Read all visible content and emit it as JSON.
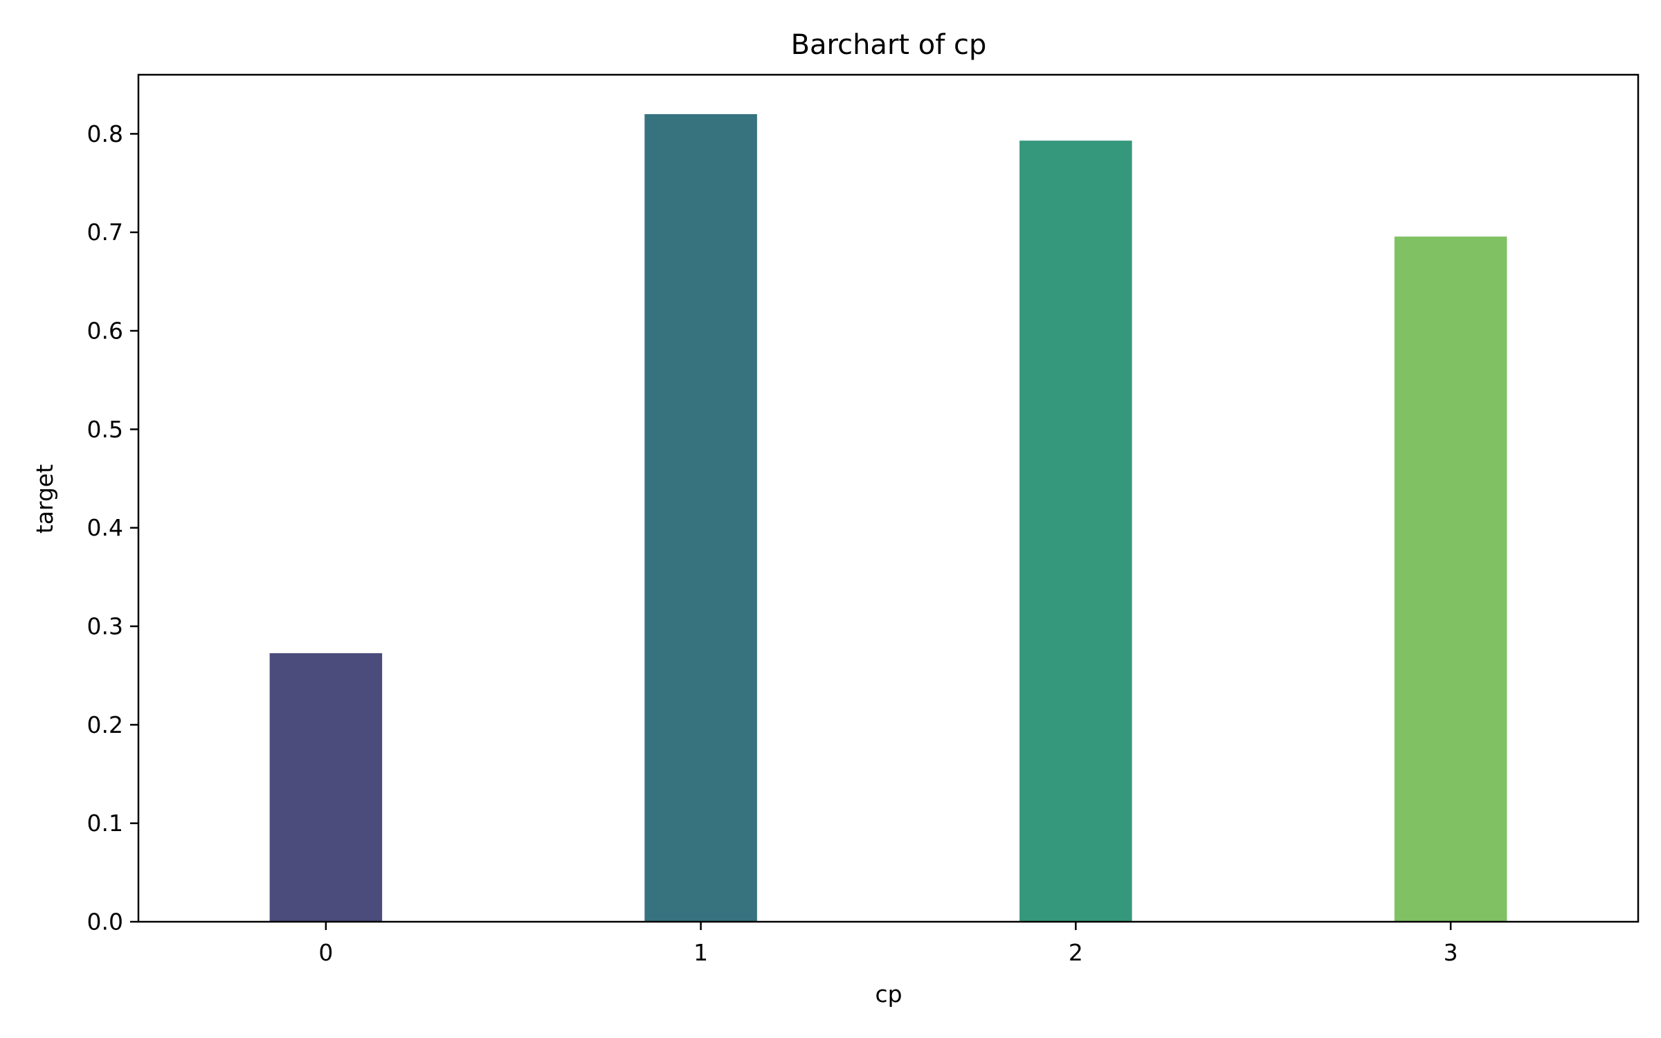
{
  "chart_data": {
    "type": "bar",
    "title": "Barchart of cp",
    "xlabel": "cp",
    "ylabel": "target",
    "categories": [
      "0",
      "1",
      "2",
      "3"
    ],
    "values": [
      0.2727,
      0.82,
      0.7931,
      0.6957
    ],
    "colors": [
      "#4b4c7c",
      "#37727f",
      "#35987c",
      "#80c164"
    ],
    "ylim": [
      0,
      0.86
    ],
    "yticks": [
      0.0,
      0.1,
      0.2,
      0.3,
      0.4,
      0.5,
      0.6,
      0.7,
      0.8
    ],
    "ytick_labels": [
      "0.0",
      "0.1",
      "0.2",
      "0.3",
      "0.4",
      "0.5",
      "0.6",
      "0.7",
      "0.8"
    ],
    "grid": false,
    "legend": "none"
  }
}
